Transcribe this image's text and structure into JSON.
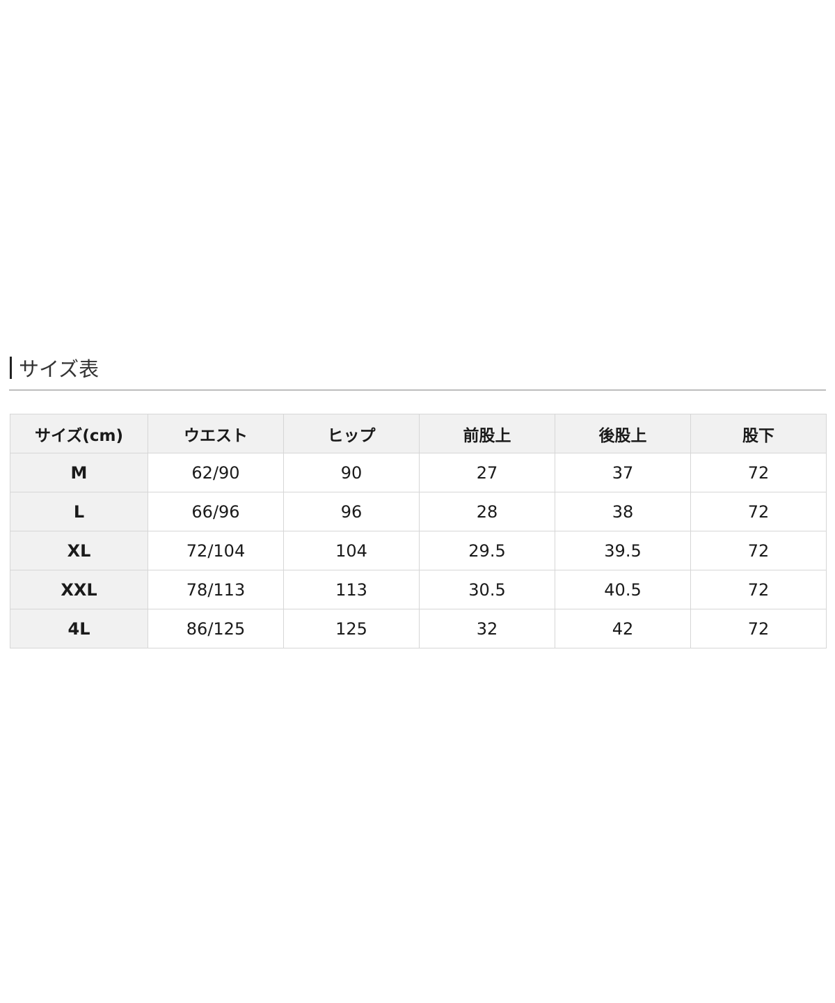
{
  "title": "サイズ表",
  "table": {
    "headers": [
      "サイズ(cm)",
      "ウエスト",
      "ヒップ",
      "前股上",
      "後股上",
      "股下"
    ],
    "rows": [
      [
        "M",
        "62/90",
        "90",
        "27",
        "37",
        "72"
      ],
      [
        "L",
        "66/96",
        "96",
        "28",
        "38",
        "72"
      ],
      [
        "XL",
        "72/104",
        "104",
        "29.5",
        "39.5",
        "72"
      ],
      [
        "XXL",
        "78/113",
        "113",
        "30.5",
        "40.5",
        "72"
      ],
      [
        "4L",
        "86/125",
        "125",
        "32",
        "42",
        "72"
      ]
    ]
  }
}
